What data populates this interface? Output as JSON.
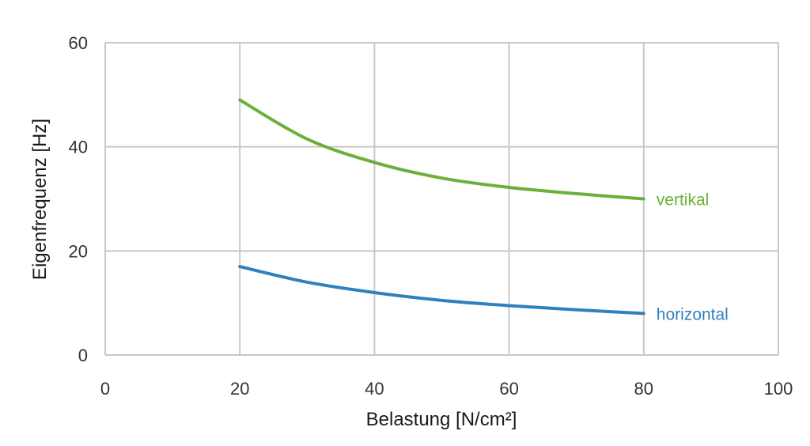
{
  "chart_data": {
    "type": "line",
    "xlabel": "Belastung [N/cm²]",
    "ylabel": "Eigenfrequenz [Hz]",
    "xlim": [
      0,
      100
    ],
    "ylim": [
      0,
      60
    ],
    "xticks": [
      0,
      20,
      40,
      60,
      80,
      100
    ],
    "yticks": [
      0,
      20,
      40,
      60
    ],
    "x_tick_labels": [
      "0",
      "20",
      "40",
      "60",
      "80",
      "100"
    ],
    "y_tick_labels": [
      "0",
      "20",
      "40",
      "60"
    ],
    "grid": true,
    "legend": "inline labels at line ends",
    "series": [
      {
        "name": "vertikal",
        "color": "#6ab13a",
        "x": [
          20,
          30,
          40,
          50,
          60,
          70,
          80
        ],
        "y": [
          49,
          41.5,
          37,
          34,
          32.2,
          31,
          30
        ]
      },
      {
        "name": "horizontal",
        "color": "#2f80bf",
        "x": [
          20,
          30,
          40,
          50,
          60,
          70,
          80
        ],
        "y": [
          17,
          14,
          12,
          10.5,
          9.5,
          8.7,
          8
        ]
      }
    ]
  }
}
